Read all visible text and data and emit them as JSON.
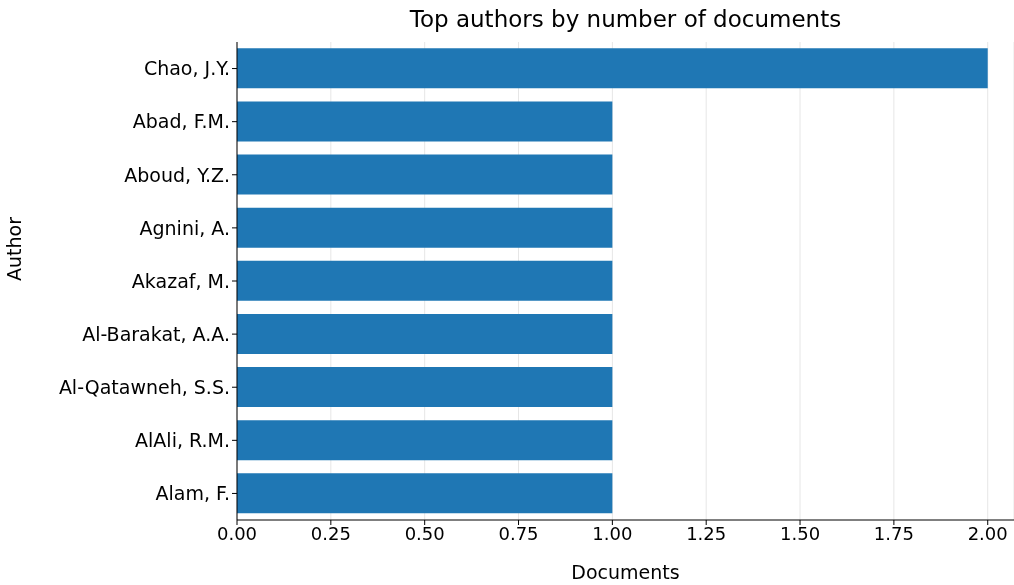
{
  "chart_data": {
    "type": "bar",
    "orientation": "horizontal",
    "title": "Top authors by number of documents",
    "xlabel": "Documents",
    "ylabel": "Author",
    "categories": [
      "Chao, J.Y.",
      "Abad, F.M.",
      "Aboud, Y.Z.",
      "Agnini, A.",
      "Akazaf, M.",
      "Al-Barakat, A.A.",
      "Al-Qatawneh, S.S.",
      "AlAli, R.M.",
      "Alam, F."
    ],
    "values": [
      2,
      1,
      1,
      1,
      1,
      1,
      1,
      1,
      1
    ],
    "color": "#1f77b4",
    "xlim": [
      0,
      2.07
    ],
    "xticks": [
      {
        "value": 0,
        "label": "0.00"
      },
      {
        "value": 0.25,
        "label": "0.25"
      },
      {
        "value": 0.5,
        "label": "0.50"
      },
      {
        "value": 0.75,
        "label": "0.75"
      },
      {
        "value": 1,
        "label": "1.00"
      },
      {
        "value": 1.25,
        "label": "1.25"
      },
      {
        "value": 1.5,
        "label": "1.50"
      },
      {
        "value": 1.75,
        "label": "1.75"
      },
      {
        "value": 2,
        "label": "2.00"
      }
    ],
    "grid": "x"
  }
}
